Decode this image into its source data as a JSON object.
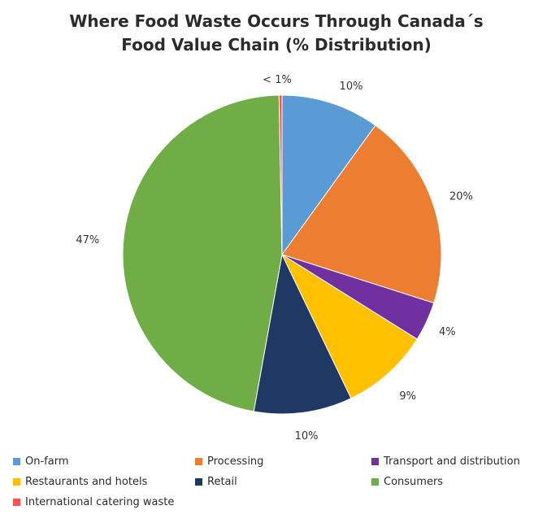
{
  "chart_data": {
    "type": "pie",
    "title": "Where Food Waste Occurs Through Canada´s Food Value Chain (% Distribution)",
    "title_lines": [
      "Where Food Waste Occurs Through Canada´s",
      "Food Value Chain (% Distribution)"
    ],
    "categories": [
      "On-farm",
      "Processing",
      "Transport and distribution",
      "Restaurants and hotels",
      "Retail",
      "Consumers",
      "International catering waste"
    ],
    "values": [
      10,
      20,
      4,
      9,
      10,
      47,
      0.3
    ],
    "data_labels": [
      "10%",
      "20%",
      "4%",
      "9%",
      "10%",
      "47%",
      "< 1%"
    ],
    "colors": [
      "#5b9bd5",
      "#ed7d31",
      "#7030a0",
      "#ffc000",
      "#1f3864",
      "#70ad47",
      "#ff5050"
    ],
    "start_angle_deg": 0,
    "direction": "clockwise",
    "legend_position": "bottom"
  }
}
